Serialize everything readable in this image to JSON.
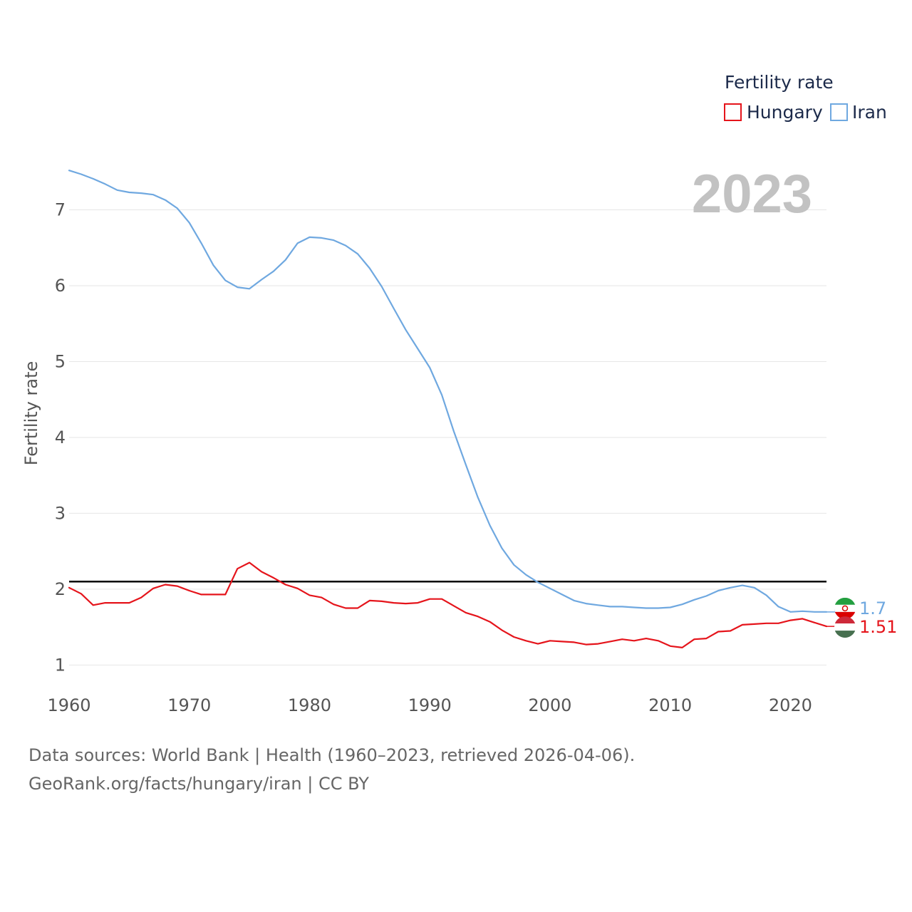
{
  "chart_data": {
    "type": "line",
    "title": "",
    "ylabel": "Fertility rate",
    "xlabel": "",
    "xlim": [
      1960,
      2023
    ],
    "ylim": [
      0.75,
      7.7
    ],
    "xticks": [
      1960,
      1970,
      1980,
      1990,
      2000,
      2010,
      2020
    ],
    "yticks": [
      1,
      2,
      3,
      4,
      5,
      6,
      7
    ],
    "current_year_label": "2023",
    "legend": {
      "title": "Fertility rate",
      "position": "top-right"
    },
    "reference_line": {
      "value": 2.1,
      "color": "#000000"
    },
    "x": [
      1960,
      1961,
      1962,
      1963,
      1964,
      1965,
      1966,
      1967,
      1968,
      1969,
      1970,
      1971,
      1972,
      1973,
      1974,
      1975,
      1976,
      1977,
      1978,
      1979,
      1980,
      1981,
      1982,
      1983,
      1984,
      1985,
      1986,
      1987,
      1988,
      1989,
      1990,
      1991,
      1992,
      1993,
      1994,
      1995,
      1996,
      1997,
      1998,
      1999,
      2000,
      2001,
      2002,
      2003,
      2004,
      2005,
      2006,
      2007,
      2008,
      2009,
      2010,
      2011,
      2012,
      2013,
      2014,
      2015,
      2016,
      2017,
      2018,
      2019,
      2020,
      2021,
      2022,
      2023
    ],
    "series": [
      {
        "name": "Hungary",
        "color": "#e5141b",
        "end_label": "1.51",
        "values": [
          2.02,
          1.94,
          1.79,
          1.82,
          1.82,
          1.82,
          1.89,
          2.01,
          2.06,
          2.04,
          1.98,
          1.93,
          1.93,
          1.93,
          2.27,
          2.35,
          2.23,
          2.15,
          2.06,
          2.01,
          1.92,
          1.89,
          1.8,
          1.75,
          1.75,
          1.85,
          1.84,
          1.82,
          1.81,
          1.82,
          1.87,
          1.87,
          1.78,
          1.69,
          1.64,
          1.57,
          1.46,
          1.37,
          1.32,
          1.28,
          1.32,
          1.31,
          1.3,
          1.27,
          1.28,
          1.31,
          1.34,
          1.32,
          1.35,
          1.32,
          1.25,
          1.23,
          1.34,
          1.35,
          1.44,
          1.45,
          1.53,
          1.54,
          1.55,
          1.55,
          1.59,
          1.61,
          1.56,
          1.51
        ]
      },
      {
        "name": "Iran",
        "color": "#6fa8e0",
        "end_label": "1.7",
        "values": [
          7.52,
          7.47,
          7.41,
          7.34,
          7.26,
          7.23,
          7.22,
          7.2,
          7.13,
          7.02,
          6.83,
          6.56,
          6.27,
          6.07,
          5.98,
          5.96,
          6.08,
          6.19,
          6.34,
          6.56,
          6.64,
          6.63,
          6.6,
          6.53,
          6.42,
          6.23,
          5.99,
          5.7,
          5.42,
          5.17,
          4.92,
          4.56,
          4.08,
          3.64,
          3.21,
          2.84,
          2.54,
          2.32,
          2.19,
          2.09,
          2.01,
          1.93,
          1.85,
          1.81,
          1.79,
          1.77,
          1.77,
          1.76,
          1.75,
          1.75,
          1.76,
          1.8,
          1.86,
          1.91,
          1.98,
          2.02,
          2.05,
          2.02,
          1.92,
          1.77,
          1.7,
          1.71,
          1.7,
          1.7
        ]
      }
    ]
  },
  "footer": {
    "line1": "Data sources: World Bank | Health (1960–2023, retrieved 2026-04-06).",
    "line2": "GeoRank.org/facts/hungary/iran | CC BY"
  }
}
